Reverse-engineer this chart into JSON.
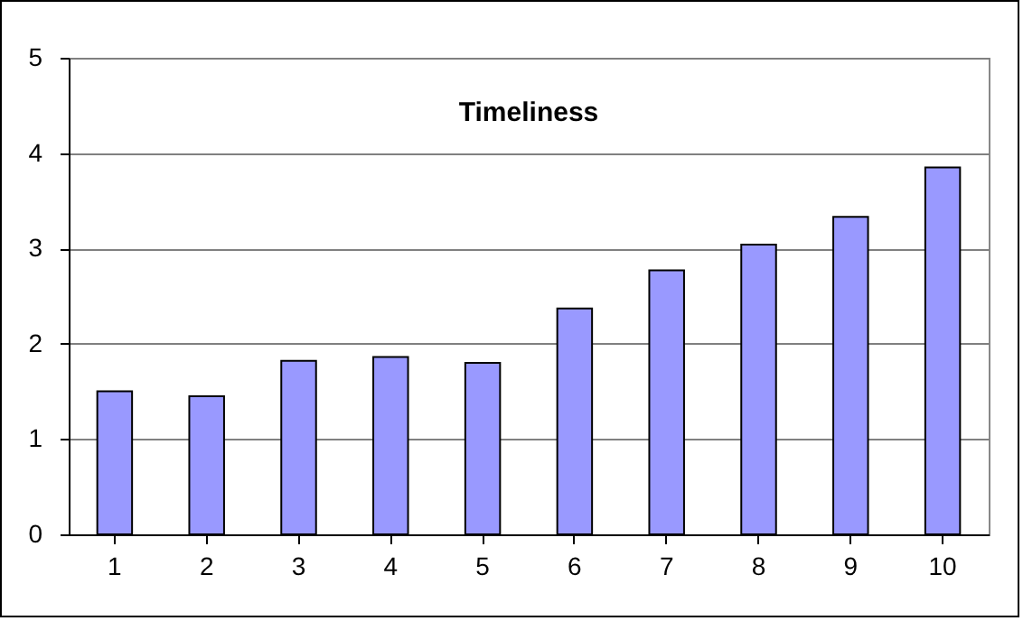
{
  "chart_data": {
    "type": "bar",
    "title": "Timeliness",
    "categories": [
      "1",
      "2",
      "3",
      "4",
      "5",
      "6",
      "7",
      "8",
      "9",
      "10"
    ],
    "values": [
      1.5,
      1.45,
      1.82,
      1.86,
      1.8,
      2.37,
      2.77,
      3.04,
      3.33,
      3.85
    ],
    "color": "#9999ff",
    "ylim": [
      0,
      5
    ],
    "yticks": [
      0,
      1,
      2,
      3,
      4,
      5
    ],
    "grid": "y"
  }
}
